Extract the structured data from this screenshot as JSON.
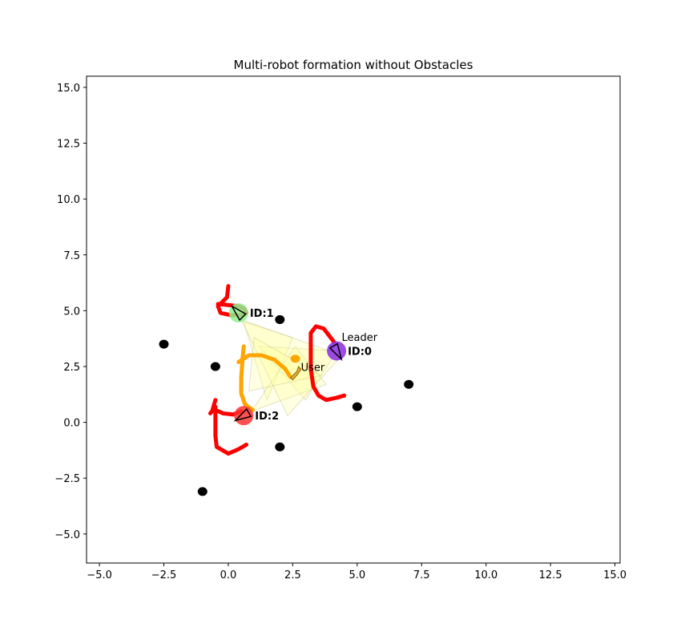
{
  "chart_data": {
    "type": "scatter",
    "title": "Multi-robot formation without Obstacles",
    "xlabel": "",
    "ylabel": "",
    "xlim": [
      -5.5,
      15.2
    ],
    "ylim": [
      -6.3,
      15.5
    ],
    "xticks": [
      -5.0,
      -2.5,
      0.0,
      2.5,
      5.0,
      7.5,
      10.0,
      12.5,
      15.0
    ],
    "xtick_labels": [
      "−5.0",
      "−2.5",
      "0.0",
      "2.5",
      "5.0",
      "7.5",
      "10.0",
      "12.5",
      "15.0"
    ],
    "yticks": [
      -5.0,
      -2.5,
      0.0,
      2.5,
      5.0,
      7.5,
      10.0,
      12.5,
      15.0
    ],
    "ytick_labels": [
      "−5.0",
      "−2.5",
      "0.0",
      "2.5",
      "5.0",
      "7.5",
      "10.0",
      "12.5",
      "15.0"
    ],
    "grid": false,
    "colors": {
      "landmark": "#000000",
      "robot_trail": "#ff0000",
      "user_trail": "#ffa500",
      "fov_fill": "#ffff99",
      "robot0": "#8a2be2",
      "robot1": "#90ee90",
      "robot2": "#ff3333",
      "user_marker": "#f4c040"
    },
    "landmarks": [
      {
        "x": 2.0,
        "y": 4.6
      },
      {
        "x": -2.5,
        "y": 3.5
      },
      {
        "x": -0.5,
        "y": 2.5
      },
      {
        "x": 7.0,
        "y": 1.7
      },
      {
        "x": 5.0,
        "y": 0.7
      },
      {
        "x": 2.0,
        "y": -1.1
      },
      {
        "x": -1.0,
        "y": -3.1
      }
    ],
    "fov_cones": [
      [
        [
          0.6,
          4.5
        ],
        [
          2.5,
          3.8
        ],
        [
          1.5,
          1.0
        ]
      ],
      [
        [
          4.2,
          3.2
        ],
        [
          1.2,
          3.4
        ],
        [
          3.0,
          1.0
        ]
      ],
      [
        [
          0.9,
          0.5
        ],
        [
          2.6,
          3.4
        ],
        [
          3.8,
          1.7
        ]
      ],
      [
        [
          0.5,
          4.6
        ],
        [
          4.4,
          3.0
        ],
        [
          2.3,
          0.3
        ]
      ],
      [
        [
          1.0,
          3.8
        ],
        [
          3.6,
          2.1
        ],
        [
          0.8,
          1.4
        ]
      ]
    ],
    "robot_trails": [
      {
        "id": 0,
        "points": [
          [
            4.1,
            3.6
          ],
          [
            3.7,
            4.2
          ],
          [
            3.4,
            4.3
          ],
          [
            3.2,
            4.0
          ],
          [
            3.2,
            3.2
          ],
          [
            3.2,
            2.4
          ],
          [
            3.3,
            1.6
          ],
          [
            3.5,
            1.2
          ],
          [
            3.8,
            1.0
          ],
          [
            4.2,
            1.1
          ],
          [
            4.5,
            1.2
          ]
        ]
      },
      {
        "id": 1,
        "points": [
          [
            0.0,
            6.1
          ],
          [
            -0.05,
            5.6
          ],
          [
            -0.4,
            5.2
          ],
          [
            -0.3,
            4.9
          ],
          [
            0.1,
            4.8
          ],
          [
            0.5,
            4.8
          ],
          [
            0.7,
            4.9
          ],
          [
            0.6,
            5.1
          ],
          [
            0.4,
            5.2
          ],
          [
            0.0,
            5.25
          ],
          [
            -0.4,
            5.3
          ]
        ]
      },
      {
        "id": 2,
        "points": [
          [
            -0.7,
            0.4
          ],
          [
            -0.5,
            0.7
          ],
          [
            -0.5,
            0.2
          ],
          [
            -0.5,
            -0.6
          ],
          [
            -0.45,
            -1.1
          ],
          [
            0.0,
            -1.4
          ],
          [
            0.4,
            -1.2
          ],
          [
            0.7,
            -1.0
          ]
        ]
      },
      {
        "id": 3,
        "points": [
          [
            -0.5,
            1.0
          ],
          [
            -0.6,
            0.6
          ],
          [
            -0.2,
            0.4
          ],
          [
            0.2,
            0.35
          ],
          [
            0.5,
            0.5
          ]
        ]
      }
    ],
    "user_trail": [
      [
        0.6,
        3.4
      ],
      [
        0.55,
        2.8
      ],
      [
        0.5,
        2.0
      ],
      [
        0.5,
        1.3
      ],
      [
        0.65,
        0.8
      ],
      [
        0.95,
        0.55
      ]
    ],
    "user_trail_branch": [
      [
        0.4,
        2.7
      ],
      [
        0.8,
        3.0
      ],
      [
        1.3,
        3.0
      ],
      [
        1.8,
        2.8
      ],
      [
        2.2,
        2.4
      ],
      [
        2.4,
        2.05
      ]
    ],
    "user_dot": {
      "x": 2.6,
      "y": 2.85
    },
    "user": {
      "x": 2.6,
      "y": 2.2,
      "label": "User"
    },
    "robots": [
      {
        "id": 0,
        "x": 4.2,
        "y": 3.2,
        "label": "ID:0",
        "heading": 300
      },
      {
        "id": 1,
        "x": 0.4,
        "y": 4.9,
        "label": "ID:1",
        "heading": 135
      },
      {
        "id": 2,
        "x": 0.6,
        "y": 0.3,
        "label": "ID:2",
        "heading": 210
      }
    ],
    "leader_label": {
      "x": 4.4,
      "y": 3.65,
      "text": "Leader"
    }
  }
}
